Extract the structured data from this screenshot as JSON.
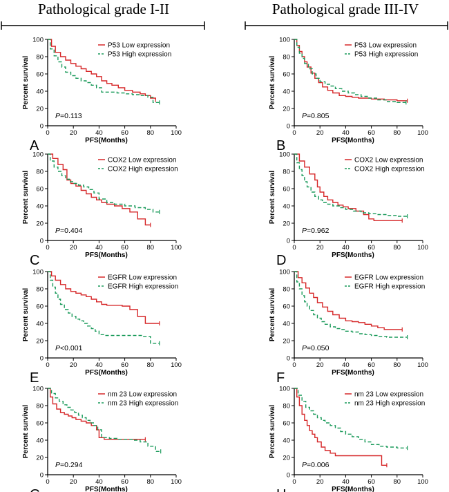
{
  "header": {
    "left_title": "Pathological grade I-II",
    "right_title": "Pathological grade III-IV"
  },
  "colors": {
    "low": "#d62728",
    "high": "#1a9a5a",
    "axis": "#000000"
  },
  "chart_data": [
    {
      "type": "line",
      "panel": "A",
      "group": "Pathological grade I-II",
      "xlabel": "PFS(Months)",
      "ylabel": "Percent survival",
      "xlim": [
        0,
        100
      ],
      "ylim": [
        0,
        100
      ],
      "xticks": [
        0,
        20,
        40,
        60,
        80,
        100
      ],
      "yticks": [
        0,
        20,
        40,
        60,
        80,
        100
      ],
      "p_prefix": "P",
      "p_value": "=0.113",
      "series": [
        {
          "name": "P53 Low expression",
          "style": "solid",
          "x": [
            0,
            3,
            6,
            10,
            14,
            18,
            22,
            26,
            30,
            34,
            38,
            42,
            46,
            50,
            55,
            60,
            66,
            72,
            76,
            80,
            84
          ],
          "y": [
            100,
            92,
            85,
            80,
            76,
            72,
            69,
            66,
            63,
            60,
            57,
            52,
            49,
            47,
            44,
            41,
            39,
            37,
            35,
            32,
            30
          ]
        },
        {
          "name": "P53 High expression",
          "style": "dashed",
          "x": [
            0,
            2,
            5,
            8,
            11,
            14,
            18,
            22,
            26,
            30,
            34,
            38,
            42,
            48,
            54,
            60,
            66,
            72,
            78,
            82,
            87
          ],
          "y": [
            100,
            89,
            81,
            74,
            68,
            62,
            58,
            55,
            52,
            50,
            47,
            44,
            39,
            39,
            38,
            37,
            36,
            35,
            33,
            27,
            27
          ]
        }
      ]
    },
    {
      "type": "line",
      "panel": "B",
      "group": "Pathological grade III-IV",
      "xlabel": "PFS(Months)",
      "ylabel": "Percent survival",
      "xlim": [
        0,
        100
      ],
      "ylim": [
        0,
        100
      ],
      "xticks": [
        0,
        20,
        40,
        60,
        80,
        100
      ],
      "yticks": [
        0,
        20,
        40,
        60,
        80,
        100
      ],
      "p_prefix": "P",
      "p_value": "=0.805",
      "series": [
        {
          "name": "P53 Low expression",
          "style": "solid",
          "x": [
            0,
            2,
            4,
            6,
            8,
            10,
            13,
            16,
            19,
            22,
            26,
            30,
            35,
            40,
            45,
            50,
            60,
            70,
            80,
            88
          ],
          "y": [
            100,
            93,
            86,
            80,
            74,
            68,
            61,
            55,
            50,
            45,
            41,
            38,
            35,
            34,
            33,
            32,
            31,
            30,
            29,
            29
          ]
        },
        {
          "name": "P53 High expression",
          "style": "dashed",
          "x": [
            0,
            2,
            4,
            6,
            8,
            11,
            14,
            17,
            20,
            24,
            28,
            32,
            37,
            42,
            47,
            52,
            58,
            65,
            72,
            80,
            87
          ],
          "y": [
            100,
            91,
            84,
            78,
            72,
            66,
            60,
            55,
            51,
            48,
            46,
            43,
            40,
            38,
            36,
            34,
            32,
            30,
            28,
            27,
            27
          ]
        }
      ]
    },
    {
      "type": "line",
      "panel": "C",
      "group": "Pathological grade I-II",
      "xlabel": "PFS(Months)",
      "ylabel": "Percent survival",
      "xlim": [
        0,
        100
      ],
      "ylim": [
        0,
        100
      ],
      "xticks": [
        0,
        20,
        40,
        60,
        80,
        100
      ],
      "yticks": [
        0,
        20,
        40,
        60,
        80,
        100
      ],
      "p_prefix": "P",
      "p_value": "=0.404",
      "series": [
        {
          "name": "COX2 Low expression",
          "style": "solid",
          "x": [
            0,
            4,
            8,
            12,
            15,
            18,
            22,
            26,
            30,
            34,
            38,
            42,
            46,
            52,
            58,
            64,
            70,
            76,
            80
          ],
          "y": [
            100,
            95,
            88,
            82,
            70,
            66,
            63,
            58,
            54,
            50,
            47,
            44,
            42,
            40,
            37,
            33,
            25,
            18,
            18
          ]
        },
        {
          "name": "COX2 High expression",
          "style": "dashed",
          "x": [
            0,
            2,
            5,
            8,
            11,
            14,
            17,
            20,
            24,
            28,
            32,
            36,
            40,
            46,
            52,
            60,
            68,
            76,
            82,
            87
          ],
          "y": [
            100,
            92,
            85,
            80,
            75,
            71,
            68,
            66,
            64,
            62,
            59,
            55,
            48,
            44,
            42,
            40,
            38,
            36,
            33,
            33
          ]
        }
      ]
    },
    {
      "type": "line",
      "panel": "D",
      "group": "Pathological grade III-IV",
      "xlabel": "PFS(Months)",
      "ylabel": "Percent survival",
      "xlim": [
        0,
        100
      ],
      "ylim": [
        0,
        100
      ],
      "xticks": [
        0,
        20,
        40,
        60,
        80,
        100
      ],
      "yticks": [
        0,
        20,
        40,
        60,
        80,
        100
      ],
      "p_prefix": "P",
      "p_value": "=0.962",
      "series": [
        {
          "name": "COX2 Low expression",
          "style": "solid",
          "x": [
            0,
            4,
            8,
            12,
            16,
            18,
            20,
            23,
            26,
            30,
            34,
            38,
            42,
            48,
            54,
            58,
            62,
            70,
            78,
            84
          ],
          "y": [
            100,
            92,
            85,
            77,
            70,
            62,
            56,
            51,
            47,
            44,
            41,
            39,
            37,
            34,
            30,
            25,
            23,
            23,
            23,
            23
          ]
        },
        {
          "name": "COX2 High expression",
          "style": "dashed",
          "x": [
            0,
            2,
            4,
            6,
            8,
            10,
            13,
            16,
            19,
            22,
            26,
            30,
            35,
            40,
            46,
            52,
            58,
            64,
            72,
            80,
            88
          ],
          "y": [
            100,
            90,
            82,
            75,
            68,
            62,
            56,
            51,
            47,
            44,
            42,
            40,
            38,
            36,
            34,
            32,
            31,
            30,
            29,
            28,
            28
          ]
        }
      ]
    },
    {
      "type": "line",
      "panel": "E",
      "group": "Pathological grade I-II",
      "xlabel": "PFS(Months)",
      "ylabel": "Percent survival",
      "xlim": [
        0,
        100
      ],
      "ylim": [
        0,
        100
      ],
      "xticks": [
        0,
        20,
        40,
        60,
        80,
        100
      ],
      "yticks": [
        0,
        20,
        40,
        60,
        80,
        100
      ],
      "p_prefix": "P",
      "p_value": "<0.001",
      "series": [
        {
          "name": "EGFR Low expression",
          "style": "solid",
          "x": [
            0,
            3,
            6,
            10,
            14,
            18,
            22,
            26,
            30,
            34,
            38,
            42,
            46,
            52,
            58,
            64,
            70,
            76,
            82,
            87
          ],
          "y": [
            100,
            95,
            90,
            85,
            80,
            77,
            75,
            73,
            71,
            68,
            65,
            62,
            61,
            61,
            60,
            56,
            48,
            40,
            40,
            40
          ]
        },
        {
          "name": "EGFR High expression",
          "style": "dashed",
          "x": [
            0,
            2,
            4,
            6,
            8,
            10,
            13,
            16,
            19,
            22,
            25,
            28,
            31,
            34,
            37,
            40,
            44,
            50,
            56,
            62,
            68,
            74,
            80,
            87
          ],
          "y": [
            100,
            90,
            82,
            75,
            68,
            62,
            56,
            52,
            48,
            45,
            43,
            40,
            37,
            34,
            31,
            27,
            26,
            26,
            26,
            26,
            26,
            25,
            17,
            17
          ]
        }
      ]
    },
    {
      "type": "line",
      "panel": "F",
      "group": "Pathological grade III-IV",
      "xlabel": "PFS(Months)",
      "ylabel": "Percent survival",
      "xlim": [
        0,
        100
      ],
      "ylim": [
        0,
        100
      ],
      "xticks": [
        0,
        20,
        40,
        60,
        80,
        100
      ],
      "yticks": [
        0,
        20,
        40,
        60,
        80,
        100
      ],
      "p_prefix": "P",
      "p_value": "=0.050",
      "series": [
        {
          "name": "EGFR Low expression",
          "style": "solid",
          "x": [
            0,
            3,
            6,
            9,
            12,
            15,
            18,
            22,
            26,
            30,
            35,
            40,
            45,
            50,
            55,
            60,
            65,
            70,
            75,
            80,
            84
          ],
          "y": [
            100,
            93,
            87,
            81,
            75,
            70,
            64,
            59,
            54,
            50,
            46,
            43,
            42,
            41,
            39,
            37,
            35,
            33,
            33,
            33,
            33
          ]
        },
        {
          "name": "EGFR High expression",
          "style": "dashed",
          "x": [
            0,
            2,
            4,
            6,
            8,
            10,
            12,
            15,
            18,
            21,
            24,
            28,
            32,
            36,
            40,
            45,
            50,
            55,
            60,
            66,
            72,
            80,
            88
          ],
          "y": [
            100,
            88,
            80,
            72,
            65,
            60,
            55,
            50,
            46,
            42,
            39,
            36,
            34,
            33,
            31,
            30,
            28,
            27,
            26,
            25,
            24,
            24,
            24
          ]
        }
      ]
    },
    {
      "type": "line",
      "panel": "G",
      "group": "Pathological grade I-II",
      "xlabel": "PFS(Months)",
      "ylabel": "Percent survival",
      "xlim": [
        0,
        100
      ],
      "ylim": [
        0,
        100
      ],
      "xticks": [
        0,
        20,
        40,
        60,
        80,
        100
      ],
      "yticks": [
        0,
        20,
        40,
        60,
        80,
        100
      ],
      "p_prefix": "P",
      "p_value": "=0.294",
      "series": [
        {
          "name": "nm 23 Low expression",
          "style": "solid",
          "x": [
            0,
            2,
            4,
            7,
            10,
            13,
            16,
            19,
            22,
            26,
            30,
            34,
            38,
            40,
            44,
            50,
            56,
            62,
            68,
            76
          ],
          "y": [
            100,
            90,
            82,
            76,
            72,
            70,
            68,
            66,
            64,
            62,
            60,
            57,
            52,
            43,
            41,
            41,
            41,
            41,
            41,
            41
          ]
        },
        {
          "name": "nm 23 High expression",
          "style": "dashed",
          "x": [
            0,
            3,
            6,
            9,
            12,
            15,
            18,
            21,
            24,
            27,
            30,
            33,
            36,
            39,
            42,
            48,
            54,
            60,
            66,
            72,
            78,
            84,
            88
          ],
          "y": [
            100,
            94,
            89,
            85,
            81,
            78,
            75,
            72,
            69,
            66,
            63,
            60,
            57,
            52,
            43,
            42,
            41,
            41,
            40,
            38,
            33,
            27,
            27
          ]
        }
      ]
    },
    {
      "type": "line",
      "panel": "H",
      "group": "Pathological grade III-IV",
      "xlabel": "PFS(Months)",
      "ylabel": "Percent survival",
      "xlim": [
        0,
        100
      ],
      "ylim": [
        0,
        100
      ],
      "xticks": [
        0,
        20,
        40,
        60,
        80,
        100
      ],
      "yticks": [
        0,
        20,
        40,
        60,
        80,
        100
      ],
      "p_prefix": "P",
      "p_value": "=0.006",
      "series": [
        {
          "name": "nm 23 Low expression",
          "style": "solid",
          "x": [
            0,
            2,
            4,
            6,
            8,
            10,
            12,
            14,
            16,
            18,
            21,
            24,
            28,
            32,
            36,
            50,
            60,
            66,
            68,
            72
          ],
          "y": [
            100,
            90,
            80,
            70,
            63,
            57,
            51,
            47,
            43,
            38,
            32,
            28,
            25,
            22,
            22,
            22,
            22,
            22,
            11,
            11
          ]
        },
        {
          "name": "nm 23 High expression",
          "style": "dashed",
          "x": [
            0,
            3,
            6,
            9,
            12,
            15,
            18,
            21,
            24,
            28,
            32,
            36,
            40,
            45,
            50,
            55,
            60,
            66,
            72,
            80,
            88
          ],
          "y": [
            100,
            92,
            85,
            78,
            74,
            70,
            66,
            63,
            60,
            57,
            54,
            50,
            47,
            44,
            41,
            38,
            35,
            33,
            32,
            31,
            31
          ]
        }
      ]
    }
  ]
}
